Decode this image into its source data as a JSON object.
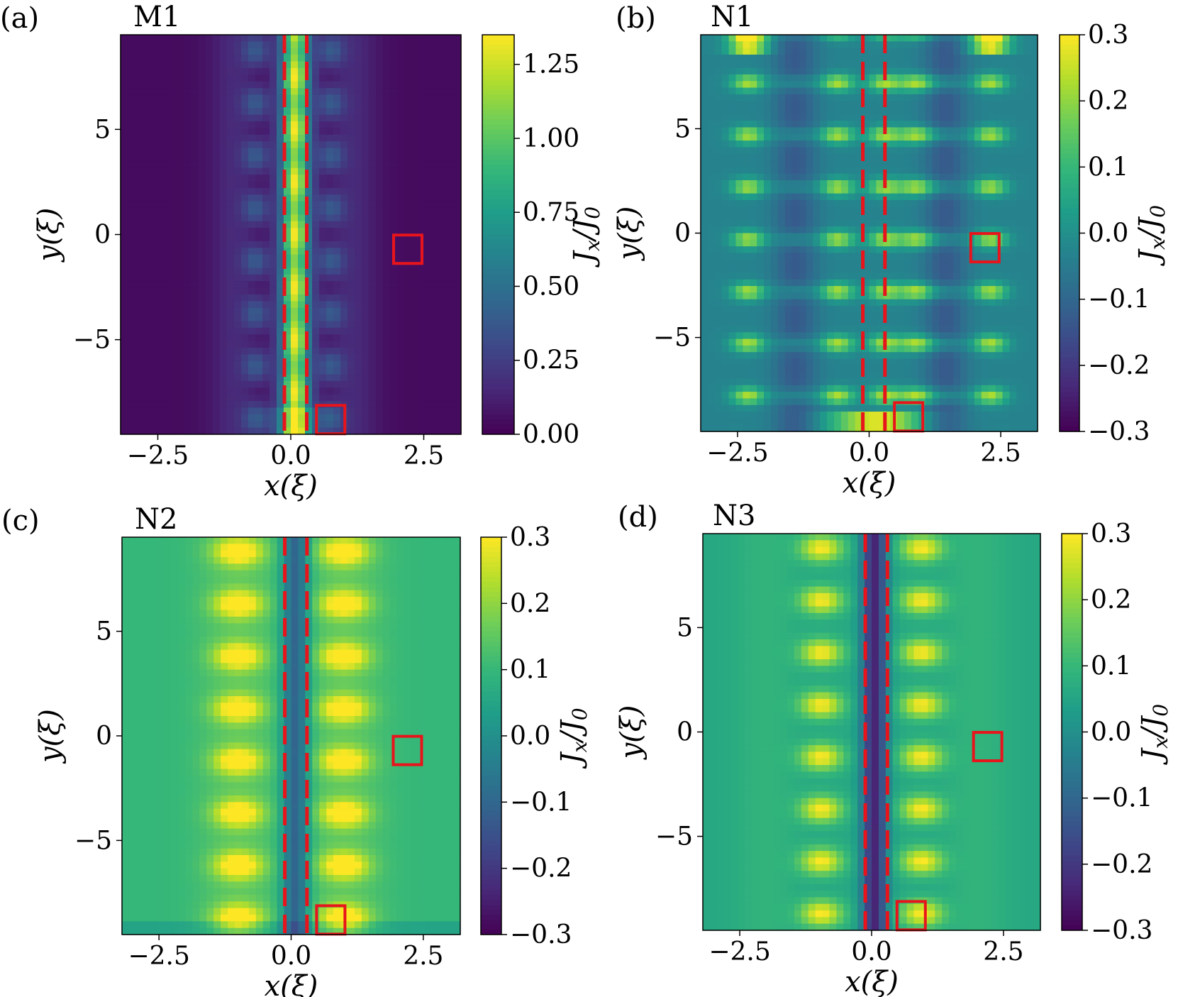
{
  "chart_data": [
    {
      "type": "heatmap",
      "panel_label": "(a)",
      "title": "M1",
      "xlabel": "x(ξ)",
      "ylabel": "y(ξ)",
      "colorbar_label": "J_x/J_0",
      "xlim": [
        -3.2,
        3.2
      ],
      "ylim": [
        -9.5,
        9.5
      ],
      "xticks": [
        -2.5,
        0.0,
        2.5
      ],
      "xtick_labels": [
        "−2.5",
        "0.0",
        "2.5"
      ],
      "yticks": [
        5,
        0,
        -5
      ],
      "ytick_labels": [
        "5",
        "0",
        "−5"
      ],
      "colorbar_range": [
        0.0,
        1.35
      ],
      "colorbar_ticks": [
        0.0,
        0.25,
        0.5,
        0.75,
        1.0,
        1.25
      ],
      "colorbar_tick_labels": [
        "0.00",
        "0.25",
        "0.50",
        "0.75",
        "1.00",
        "1.25"
      ],
      "colormap": "viridis",
      "pattern": "m1",
      "dashed_lines_x": [
        -0.12,
        0.3
      ],
      "markers": [
        {
          "x": 2.2,
          "y": -0.7
        },
        {
          "x": 0.75,
          "y": -8.8
        }
      ]
    },
    {
      "type": "heatmap",
      "panel_label": "(b)",
      "title": "N1",
      "xlabel": "x(ξ)",
      "ylabel": "y(ξ)",
      "colorbar_label": "J_x/J_0",
      "xlim": [
        -3.2,
        3.2
      ],
      "ylim": [
        -9.5,
        9.5
      ],
      "xticks": [
        -2.5,
        0.0,
        2.5
      ],
      "xtick_labels": [
        "−2.5",
        "0.0",
        "2.5"
      ],
      "yticks": [
        5,
        0,
        -5
      ],
      "ytick_labels": [
        "5",
        "0",
        "−5"
      ],
      "colorbar_range": [
        -0.3,
        0.3
      ],
      "colorbar_ticks": [
        -0.3,
        -0.2,
        -0.1,
        0.0,
        0.1,
        0.2,
        0.3
      ],
      "colorbar_tick_labels": [
        "−0.3",
        "−0.2",
        "−0.1",
        "0.0",
        "0.1",
        "0.2",
        "0.3"
      ],
      "colormap": "viridis",
      "pattern": "n1",
      "dashed_lines_x": [
        -0.12,
        0.3
      ],
      "markers": [
        {
          "x": 2.2,
          "y": -0.7
        },
        {
          "x": 0.75,
          "y": -8.8
        }
      ]
    },
    {
      "type": "heatmap",
      "panel_label": "(c)",
      "title": "N2",
      "xlabel": "x(ξ)",
      "ylabel": "y(ξ)",
      "colorbar_label": "J_x/J_0",
      "xlim": [
        -3.2,
        3.2
      ],
      "ylim": [
        -9.5,
        9.5
      ],
      "xticks": [
        -2.5,
        0.0,
        2.5
      ],
      "xtick_labels": [
        "−2.5",
        "0.0",
        "2.5"
      ],
      "yticks": [
        5,
        0,
        -5
      ],
      "ytick_labels": [
        "5",
        "0",
        "−5"
      ],
      "colorbar_range": [
        -0.3,
        0.3
      ],
      "colorbar_ticks": [
        -0.3,
        -0.2,
        -0.1,
        0.0,
        0.1,
        0.2,
        0.3
      ],
      "colorbar_tick_labels": [
        "−0.3",
        "−0.2",
        "−0.1",
        "0.0",
        "0.1",
        "0.2",
        "0.3"
      ],
      "colormap": "viridis",
      "pattern": "n2",
      "dashed_lines_x": [
        -0.12,
        0.3
      ],
      "markers": [
        {
          "x": 2.2,
          "y": -0.7
        },
        {
          "x": 0.75,
          "y": -8.8
        }
      ]
    },
    {
      "type": "heatmap",
      "panel_label": "(d)",
      "title": "N3",
      "xlabel": "x(ξ)",
      "ylabel": "y(ξ)",
      "colorbar_label": "J_x/J_0",
      "xlim": [
        -3.2,
        3.2
      ],
      "ylim": [
        -9.5,
        9.5
      ],
      "xticks": [
        -2.5,
        0.0,
        2.5
      ],
      "xtick_labels": [
        "−2.5",
        "0.0",
        "2.5"
      ],
      "yticks": [
        5,
        0,
        -5
      ],
      "ytick_labels": [
        "5",
        "0",
        "−5"
      ],
      "colorbar_range": [
        -0.3,
        0.3
      ],
      "colorbar_ticks": [
        -0.3,
        -0.2,
        -0.1,
        0.0,
        0.1,
        0.2,
        0.3
      ],
      "colorbar_tick_labels": [
        "−0.3",
        "−0.2",
        "−0.1",
        "0.0",
        "0.1",
        "0.2",
        "0.3"
      ],
      "colormap": "viridis",
      "pattern": "n3",
      "dashed_lines_x": [
        -0.12,
        0.3
      ],
      "markers": [
        {
          "x": 2.2,
          "y": -0.7
        },
        {
          "x": 0.75,
          "y": -8.8
        }
      ]
    }
  ],
  "colors": {
    "dashed_line": "#e8141b",
    "marker": "#e8141b"
  }
}
